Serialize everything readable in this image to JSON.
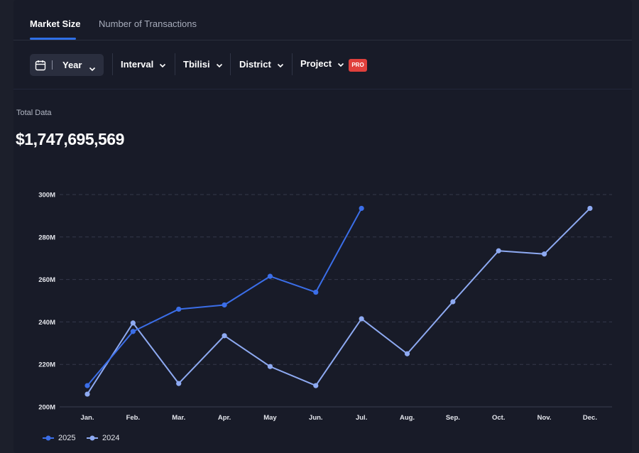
{
  "tabs": [
    {
      "label": "Market Size",
      "active": true
    },
    {
      "label": "Number of Transactions",
      "active": false
    }
  ],
  "toolbar": {
    "period_icon": "calendar-icon",
    "period_label": "Year",
    "filters": [
      "Interval",
      "Tbilisi",
      "District",
      "Project"
    ],
    "pro_badge": "PRO"
  },
  "summary": {
    "label": "Total Data",
    "value": "$1,747,695,569"
  },
  "colors": {
    "series_2025": "#3b6ee8",
    "series_2024": "#8eaaf2",
    "pro_badge": "#e0403c",
    "tab_accent": "#2f6fe6"
  },
  "chart_data": {
    "type": "line",
    "categories": [
      "Jan.",
      "Feb.",
      "Mar.",
      "Apr.",
      "May",
      "Jun.",
      "Jul.",
      "Aug.",
      "Sep.",
      "Oct.",
      "Nov.",
      "Dec."
    ],
    "series": [
      {
        "name": "2025",
        "values": [
          210,
          235.5,
          246,
          248,
          261.5,
          254,
          293.5,
          null,
          null,
          null,
          null,
          null
        ]
      },
      {
        "name": "2024",
        "values": [
          206,
          239.5,
          211,
          233.5,
          219,
          210,
          241.5,
          225,
          249.5,
          273.5,
          272,
          293.5
        ]
      }
    ],
    "y_ticks": [
      "200M",
      "220M",
      "240M",
      "260M",
      "280M",
      "300M"
    ],
    "ylim": [
      200,
      300
    ],
    "grid": true,
    "legend_position": "bottom-left"
  }
}
